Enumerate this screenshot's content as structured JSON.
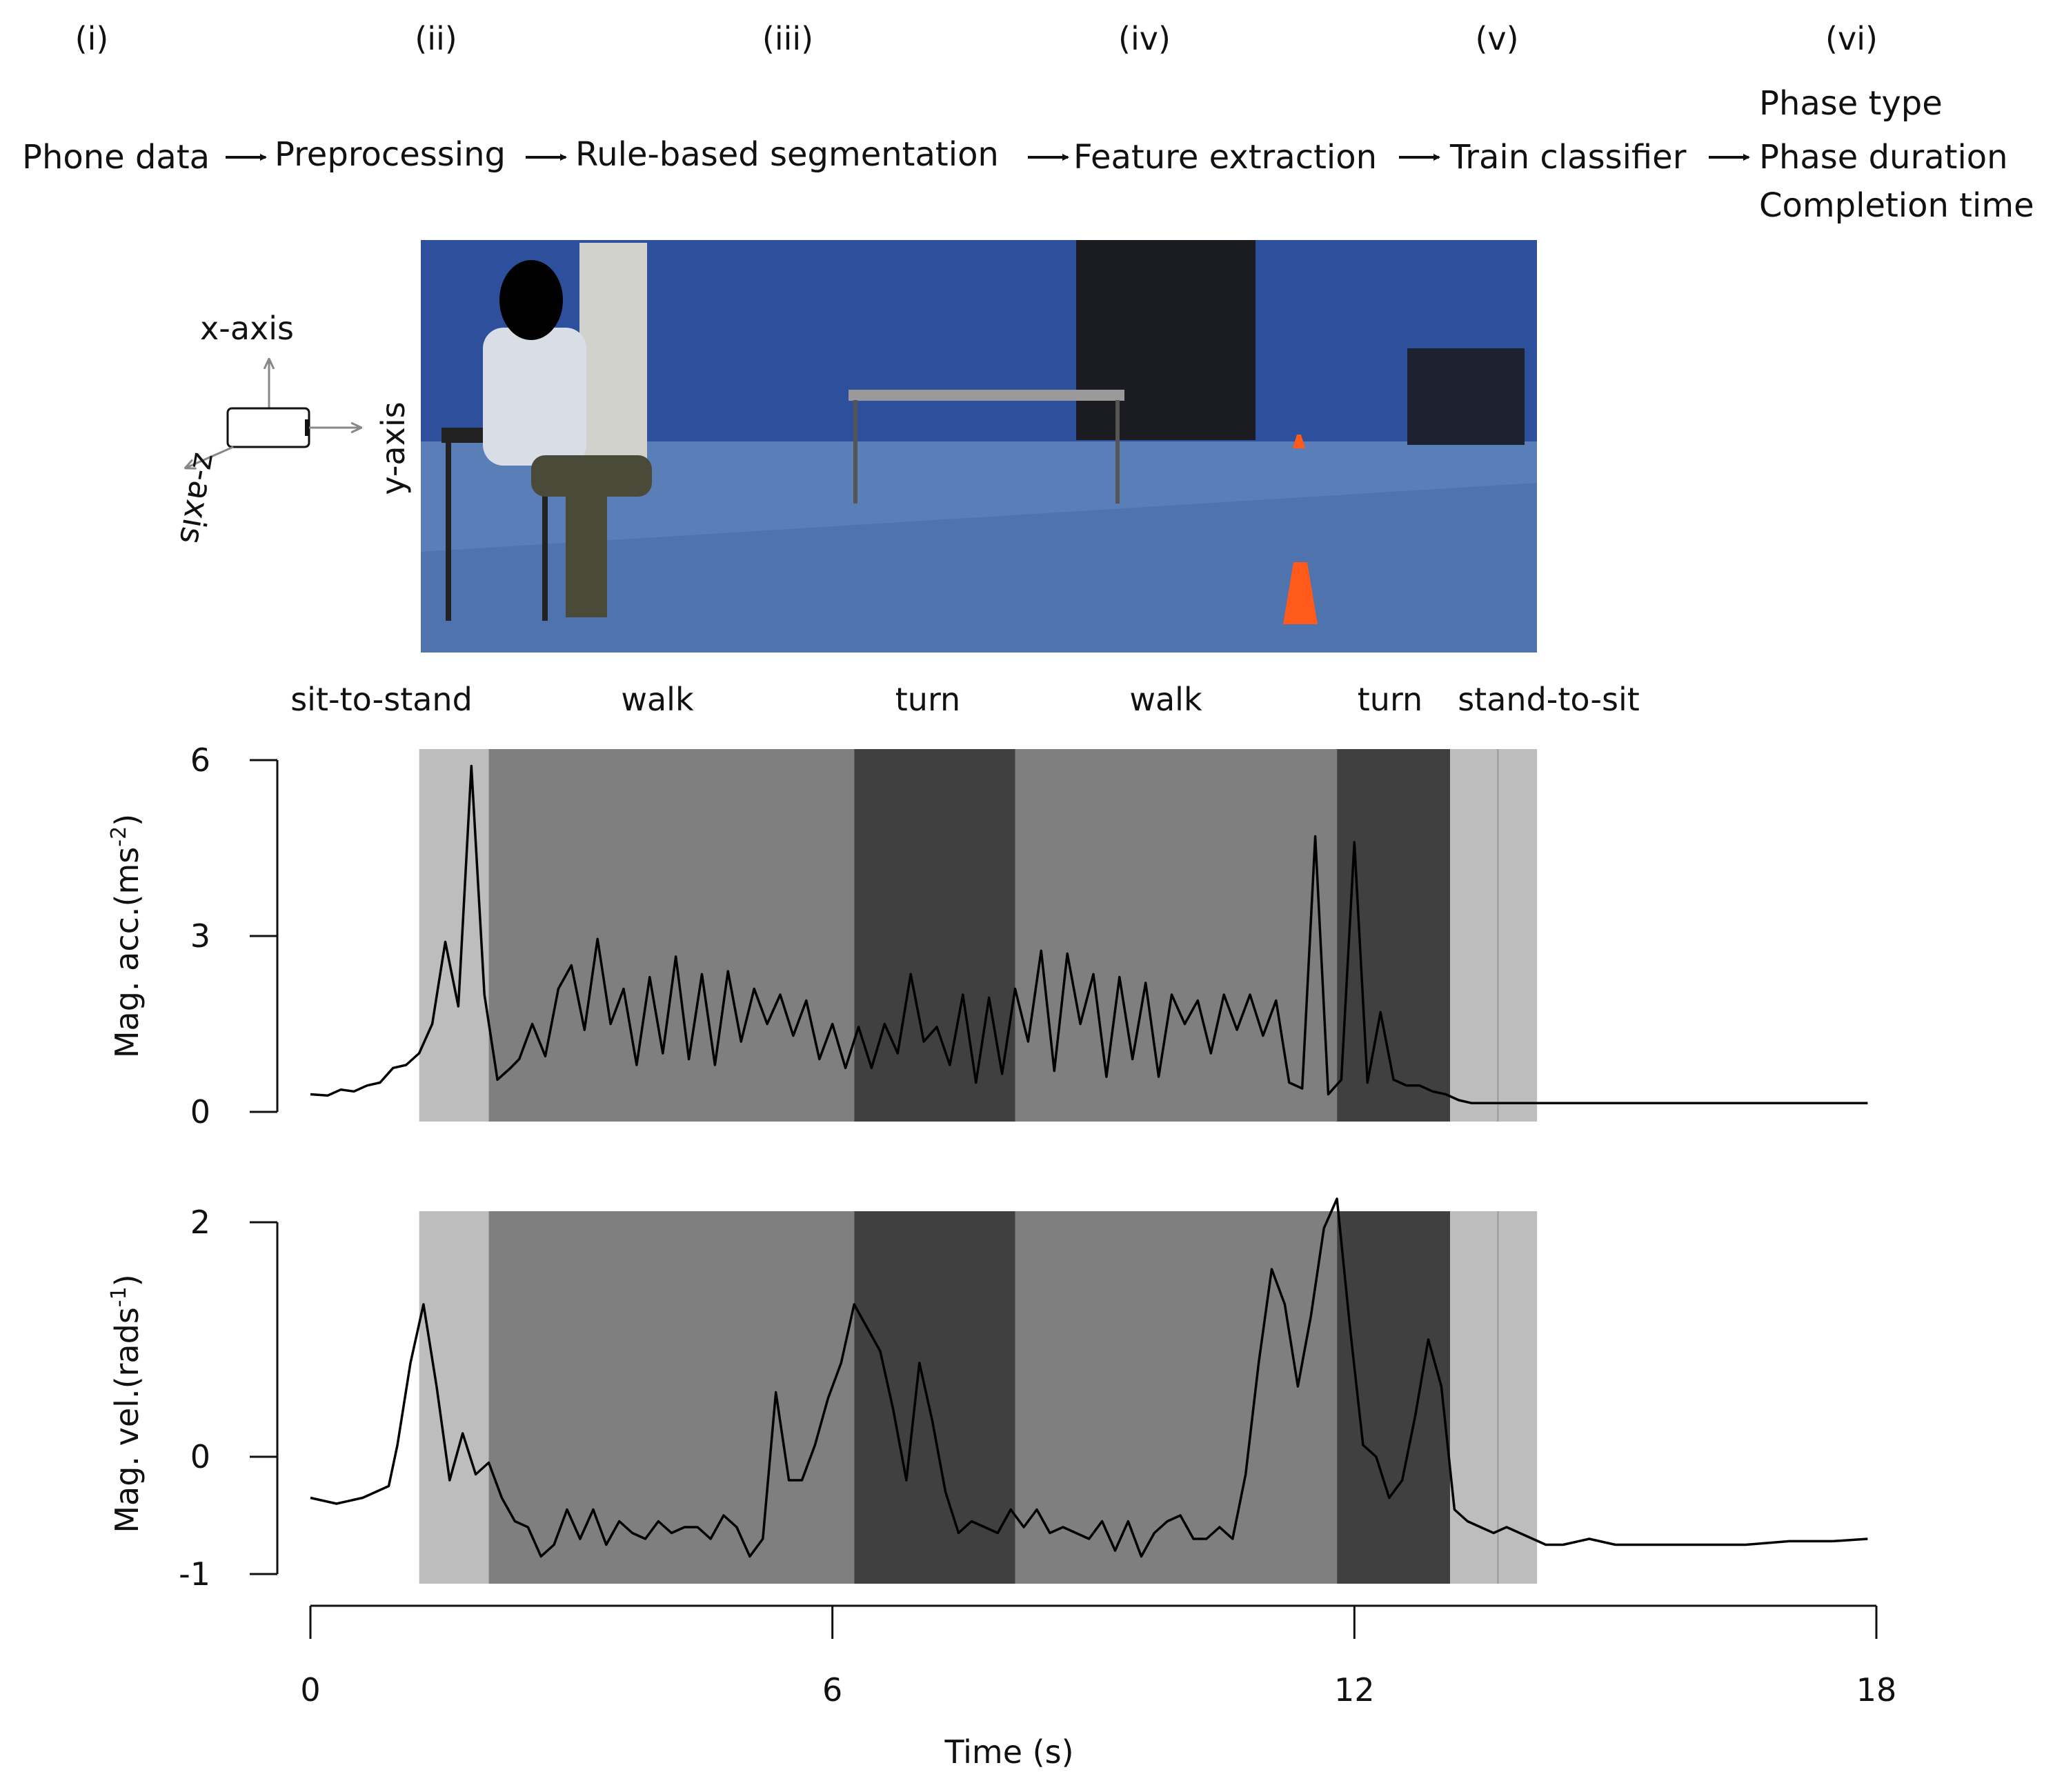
{
  "pipeline": {
    "steps": [
      {
        "num": "(i)",
        "label": "Phone data"
      },
      {
        "num": "(ii)",
        "label": "Preprocessing"
      },
      {
        "num": "(iii)",
        "label": "Rule-based segmentation"
      },
      {
        "num": "(iv)",
        "label": "Feature extraction"
      },
      {
        "num": "(v)",
        "label": "Train classifier"
      },
      {
        "num": "(vi)",
        "outputs": [
          "Phase type",
          "Phase duration",
          "Completion time"
        ]
      }
    ]
  },
  "phone_axes": {
    "x": "x-axis",
    "y": "y-axis",
    "z": "z-axis"
  },
  "phases": [
    {
      "label": "sit-to-stand",
      "start": 1.25,
      "end": 2.05,
      "shade": "#bdbdbd"
    },
    {
      "label": "walk",
      "start": 2.05,
      "end": 6.25,
      "shade": "#7f7f7f"
    },
    {
      "label": "turn",
      "start": 6.25,
      "end": 8.1,
      "shade": "#404040"
    },
    {
      "label": "walk",
      "start": 8.1,
      "end": 11.8,
      "shade": "#7f7f7f"
    },
    {
      "label": "turn",
      "start": 11.8,
      "end": 13.1,
      "shade": "#404040"
    },
    {
      "label": "stand-to-sit",
      "start": 13.1,
      "end": 14.1,
      "shade": "#bdbdbd"
    }
  ],
  "chart_data": [
    {
      "type": "line",
      "ylabel": "Mag. acc.(ms",
      "ylabel_sup": "-2",
      "ylabel_close": ")",
      "ylim": [
        0,
        6
      ],
      "yticks": [
        "0",
        "3",
        "6"
      ],
      "x": [
        0,
        0.2,
        0.35,
        0.5,
        0.65,
        0.8,
        0.95,
        1.1,
        1.25,
        1.4,
        1.55,
        1.7,
        1.85,
        2.0,
        2.15,
        2.3,
        2.4,
        2.55,
        2.7,
        2.85,
        3.0,
        3.15,
        3.3,
        3.45,
        3.6,
        3.75,
        3.9,
        4.05,
        4.2,
        4.35,
        4.5,
        4.65,
        4.8,
        4.95,
        5.1,
        5.25,
        5.4,
        5.55,
        5.7,
        5.85,
        6.0,
        6.15,
        6.3,
        6.45,
        6.6,
        6.75,
        6.9,
        7.05,
        7.2,
        7.35,
        7.5,
        7.65,
        7.8,
        7.95,
        8.1,
        8.25,
        8.4,
        8.55,
        8.7,
        8.85,
        9.0,
        9.15,
        9.3,
        9.45,
        9.6,
        9.75,
        9.9,
        10.05,
        10.2,
        10.35,
        10.5,
        10.65,
        10.8,
        10.95,
        11.1,
        11.25,
        11.4,
        11.55,
        11.7,
        11.85,
        12.0,
        12.15,
        12.3,
        12.45,
        12.6,
        12.75,
        12.9,
        13.05,
        13.2,
        13.35,
        13.5,
        13.65,
        13.8,
        13.95,
        14.1,
        14.3,
        14.5,
        14.8,
        15.1,
        15.5,
        16.0,
        16.5,
        17.0,
        17.5,
        17.9
      ],
      "series": [
        {
          "values": [
            0.3,
            0.28,
            0.38,
            0.35,
            0.45,
            0.5,
            0.75,
            0.8,
            1.0,
            1.5,
            2.9,
            1.8,
            5.9,
            2.0,
            0.55,
            0.75,
            0.9,
            1.5,
            0.95,
            2.1,
            2.5,
            1.4,
            2.95,
            1.5,
            2.1,
            0.8,
            2.3,
            1.0,
            2.65,
            0.9,
            2.35,
            0.8,
            2.4,
            1.2,
            2.1,
            1.5,
            2.0,
            1.3,
            1.9,
            0.9,
            1.5,
            0.75,
            1.45,
            0.75,
            1.5,
            1.0,
            2.35,
            1.2,
            1.45,
            0.8,
            2.0,
            0.5,
            1.95,
            0.65,
            2.1,
            1.2,
            2.75,
            0.7,
            2.7,
            1.5,
            2.35,
            0.6,
            2.3,
            0.9,
            2.2,
            0.6,
            2.0,
            1.5,
            1.9,
            1.0,
            2.0,
            1.4,
            2.0,
            1.3,
            1.9,
            0.5,
            0.4,
            4.7,
            0.3,
            0.55,
            4.6,
            0.5,
            1.7,
            0.55,
            0.45,
            0.45,
            0.35,
            0.3,
            0.2,
            0.15,
            0.15,
            0.15,
            0.15,
            0.15,
            0.15,
            0.15,
            0.15,
            0.15,
            0.15,
            0.15,
            0.15,
            0.15,
            0.15,
            0.15,
            0.15
          ]
        }
      ]
    },
    {
      "type": "line",
      "ylabel": "Mag. vel.(rads",
      "ylabel_sup": "-1",
      "ylabel_close": ")",
      "ylim": [
        -1,
        2
      ],
      "yticks": [
        "-1",
        "0",
        "2"
      ],
      "x": [
        0,
        0.3,
        0.6,
        0.9,
        1.0,
        1.15,
        1.3,
        1.45,
        1.6,
        1.75,
        1.9,
        2.05,
        2.2,
        2.35,
        2.5,
        2.65,
        2.8,
        2.95,
        3.1,
        3.25,
        3.4,
        3.55,
        3.7,
        3.85,
        4.0,
        4.15,
        4.3,
        4.45,
        4.6,
        4.75,
        4.9,
        5.05,
        5.2,
        5.35,
        5.5,
        5.65,
        5.8,
        5.95,
        6.1,
        6.25,
        6.4,
        6.55,
        6.7,
        6.85,
        7.0,
        7.15,
        7.3,
        7.45,
        7.6,
        7.75,
        7.9,
        8.05,
        8.2,
        8.35,
        8.5,
        8.65,
        8.8,
        8.95,
        9.1,
        9.25,
        9.4,
        9.55,
        9.7,
        9.85,
        10.0,
        10.15,
        10.3,
        10.45,
        10.6,
        10.75,
        10.9,
        11.05,
        11.2,
        11.35,
        11.5,
        11.65,
        11.8,
        11.95,
        12.1,
        12.25,
        12.4,
        12.55,
        12.7,
        12.85,
        13.0,
        13.15,
        13.3,
        13.45,
        13.6,
        13.75,
        13.9,
        14.05,
        14.2,
        14.4,
        14.7,
        15.0,
        15.5,
        16.0,
        16.5,
        17.0,
        17.5,
        17.9
      ],
      "series": [
        {
          "values": [
            -0.35,
            -0.4,
            -0.35,
            -0.25,
            0.1,
            0.8,
            1.3,
            0.6,
            -0.2,
            0.2,
            -0.15,
            -0.05,
            -0.35,
            -0.55,
            -0.6,
            -0.85,
            -0.75,
            -0.45,
            -0.7,
            -0.45,
            -0.75,
            -0.55,
            -0.65,
            -0.7,
            -0.55,
            -0.65,
            -0.6,
            -0.6,
            -0.7,
            -0.5,
            -0.6,
            -0.85,
            -0.7,
            0.55,
            -0.2,
            -0.2,
            0.1,
            0.5,
            0.8,
            1.3,
            1.1,
            0.9,
            0.4,
            -0.2,
            0.8,
            0.3,
            -0.3,
            -0.65,
            -0.55,
            -0.6,
            -0.65,
            -0.45,
            -0.6,
            -0.45,
            -0.65,
            -0.6,
            -0.65,
            -0.7,
            -0.55,
            -0.8,
            -0.55,
            -0.85,
            -0.65,
            -0.55,
            -0.5,
            -0.7,
            -0.7,
            -0.6,
            -0.7,
            -0.15,
            0.8,
            1.6,
            1.3,
            0.6,
            1.2,
            1.95,
            2.2,
            1.1,
            0.1,
            0.0,
            -0.35,
            -0.2,
            0.35,
            1.0,
            0.6,
            -0.45,
            -0.55,
            -0.6,
            -0.65,
            -0.6,
            -0.65,
            -0.7,
            -0.75,
            -0.75,
            -0.7,
            -0.75,
            -0.75,
            -0.75,
            -0.75,
            -0.72,
            -0.72,
            -0.7
          ]
        }
      ]
    }
  ],
  "x_axis": {
    "label": "Time (s)",
    "xlim": [
      0,
      18
    ],
    "ticks": [
      "0",
      "6",
      "12",
      "18"
    ]
  }
}
